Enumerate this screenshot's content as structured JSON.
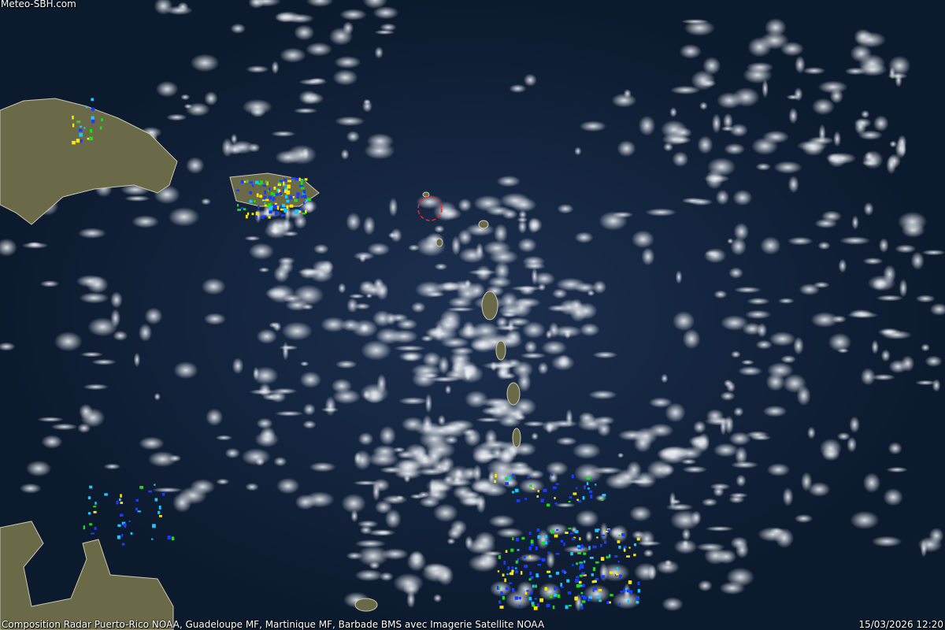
{
  "header": {
    "site_label": "Meteo-SBH.com"
  },
  "footer": {
    "credit": "Composition Radar Puerto-Rico NOAA, Guadeloupe MF, Martinique MF, Barbade BMS avec Imagerie Satellite NOAA",
    "timestamp": "15/03/2026 12:20"
  },
  "colors": {
    "ocean": "#0f1d33",
    "cloud": "#e8edf2",
    "land": "#6b6a48",
    "marker": "#ff2020",
    "radar_low": "#1a3cff",
    "radar_mid": "#19e019",
    "radar_high": "#ffe600"
  },
  "marker": {
    "icon": "crosshair-circle-icon"
  }
}
